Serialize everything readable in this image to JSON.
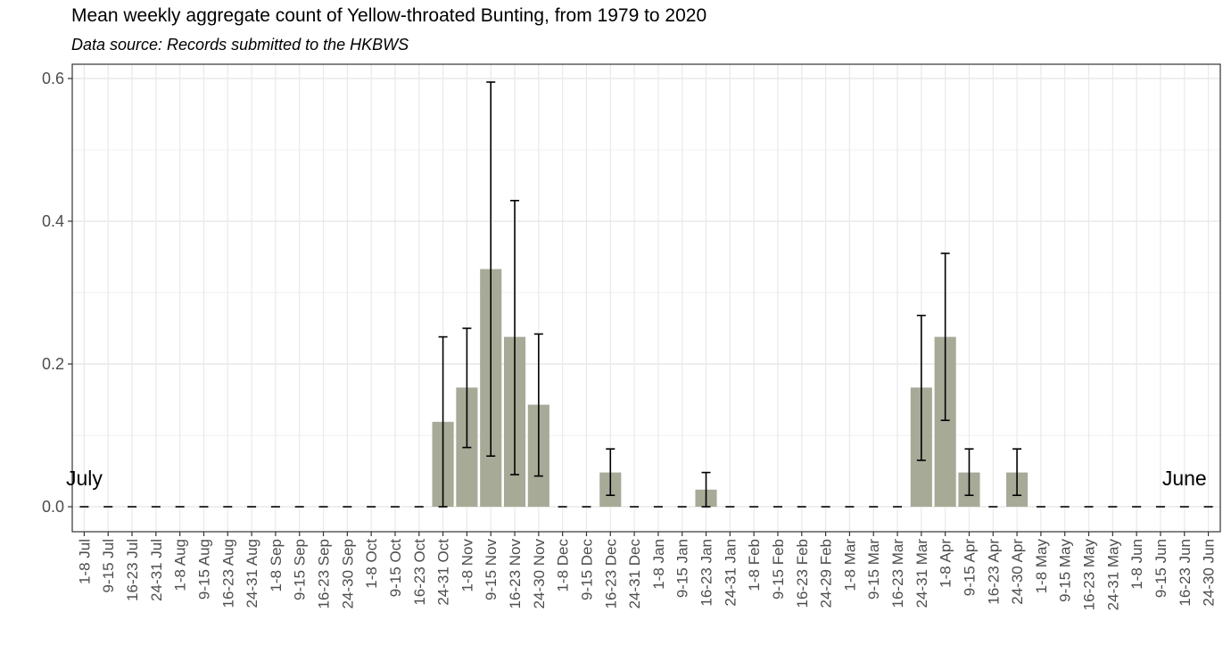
{
  "chart_data": {
    "type": "bar",
    "title": "Mean weekly aggregate count of Yellow-throated Bunting, from 1979 to 2020",
    "subtitle": "Data source: Records submitted to the HKBWS",
    "xlabel": "",
    "ylabel": "",
    "ylim": [
      -0.035,
      0.62
    ],
    "yticks": [
      0.0,
      0.2,
      0.4,
      0.6
    ],
    "ytick_labels": [
      "0.0",
      "0.2",
      "0.4",
      "0.6"
    ],
    "grid": true,
    "bar_color": "#a8aa98",
    "categories": [
      "1-8 Jul",
      "9-15 Jul",
      "16-23 Jul",
      "24-31 Jul",
      "1-8 Aug",
      "9-15 Aug",
      "16-23 Aug",
      "24-31 Aug",
      "1-8 Sep",
      "9-15 Sep",
      "16-23 Sep",
      "24-30 Sep",
      "1-8 Oct",
      "9-15 Oct",
      "16-23 Oct",
      "24-31 Oct",
      "1-8 Nov",
      "9-15 Nov",
      "16-23 Nov",
      "24-30 Nov",
      "1-8 Dec",
      "9-15 Dec",
      "16-23 Dec",
      "24-31 Dec",
      "1-8 Jan",
      "9-15 Jan",
      "16-23 Jan",
      "24-31 Jan",
      "1-8 Feb",
      "9-15 Feb",
      "16-23 Feb",
      "24-29 Feb",
      "1-8 Mar",
      "9-15 Mar",
      "16-23 Mar",
      "24-31 Mar",
      "1-8 Apr",
      "9-15 Apr",
      "16-23 Apr",
      "24-30 Apr",
      "1-8 May",
      "9-15 May",
      "16-23 May",
      "24-31 May",
      "1-8 Jun",
      "9-15 Jun",
      "16-23 Jun",
      "24-30 Jun"
    ],
    "values": [
      0,
      0,
      0,
      0,
      0,
      0,
      0,
      0,
      0,
      0,
      0,
      0,
      0,
      0,
      0,
      0.119,
      0.167,
      0.333,
      0.238,
      0.143,
      0,
      0,
      0.048,
      0,
      0,
      0,
      0.024,
      0,
      0,
      0,
      0,
      0,
      0,
      0,
      0,
      0.167,
      0.238,
      0.048,
      0,
      0.048,
      0,
      0,
      0,
      0,
      0,
      0,
      0,
      0
    ],
    "error_low": [
      0,
      0,
      0,
      0,
      0,
      0,
      0,
      0,
      0,
      0,
      0,
      0,
      0,
      0,
      0,
      0,
      0.083,
      0.071,
      0.045,
      0.043,
      0,
      0,
      0.016,
      0,
      0,
      0,
      0,
      0,
      0,
      0,
      0,
      0,
      0,
      0,
      0,
      0.065,
      0.121,
      0.016,
      0,
      0.016,
      0,
      0,
      0,
      0,
      0,
      0,
      0,
      0
    ],
    "error_high": [
      0,
      0,
      0,
      0,
      0,
      0,
      0,
      0,
      0,
      0,
      0,
      0,
      0,
      0,
      0,
      0.238,
      0.25,
      0.595,
      0.429,
      0.242,
      0,
      0,
      0.081,
      0,
      0,
      0,
      0.048,
      0,
      0,
      0,
      0,
      0,
      0,
      0,
      0,
      0.268,
      0.355,
      0.081,
      0,
      0.081,
      0,
      0,
      0,
      0,
      0,
      0,
      0,
      0
    ],
    "annotations": [
      {
        "text": "July",
        "category_index": 0,
        "y": 0.03
      },
      {
        "text": "June",
        "category_index": 46,
        "y": 0.03
      }
    ]
  }
}
